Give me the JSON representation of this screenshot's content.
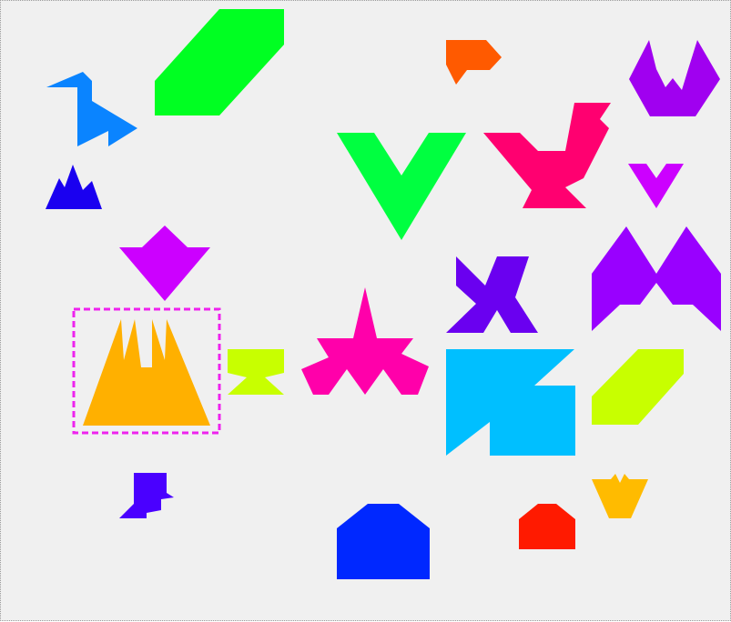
{
  "board": {
    "background": "#f0f0f0"
  },
  "selection": {
    "target": "mountain-shape",
    "color": "#ee22ee",
    "style": "dashed"
  },
  "shapes": [
    {
      "name": "heron-shape",
      "color": "#0a84ff"
    },
    {
      "name": "parallelogram-shape-large",
      "color": "#00ff22"
    },
    {
      "name": "small-pentagon-shape",
      "color": "#ff5a00"
    },
    {
      "name": "crown-shape",
      "color": "#a000f0"
    },
    {
      "name": "jagged-triangle-shape",
      "color": "#1a00f0"
    },
    {
      "name": "v-chevron-shape",
      "color": "#00ff40"
    },
    {
      "name": "rooster-shape",
      "color": "#ff0070"
    },
    {
      "name": "small-v-shape",
      "color": "#cc00ff"
    },
    {
      "name": "arrow-down-shape",
      "color": "#cc00ff"
    },
    {
      "name": "bat-shape",
      "color": "#9900ff"
    },
    {
      "name": "mountain-shape",
      "color": "#ffb000"
    },
    {
      "name": "hourglass-shape",
      "color": "#c8ff00"
    },
    {
      "name": "star-figure-shape",
      "color": "#ff00aa"
    },
    {
      "name": "bird-x-shape",
      "color": "#6a00f0"
    },
    {
      "name": "arrow-square-shape",
      "color": "#00bfff"
    },
    {
      "name": "parallelogram-shape-small",
      "color": "#c8ff00"
    },
    {
      "name": "boot-shape",
      "color": "#4a00ff"
    },
    {
      "name": "house-shape",
      "color": "#0028ff"
    },
    {
      "name": "small-house-shape",
      "color": "#ff1a00"
    },
    {
      "name": "crown-small-shape",
      "color": "#ffbb00"
    }
  ]
}
